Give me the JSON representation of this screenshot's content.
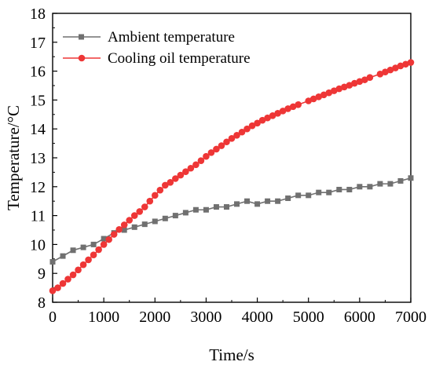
{
  "chart_data": {
    "type": "line",
    "title": "",
    "xlabel": "Time/s",
    "ylabel": "Temperature/°C",
    "xlim": [
      0,
      7000
    ],
    "ylim": [
      8,
      18
    ],
    "xticks": [
      0,
      1000,
      2000,
      3000,
      4000,
      5000,
      6000,
      7000
    ],
    "yticks": [
      8,
      9,
      10,
      11,
      12,
      13,
      14,
      15,
      16,
      17,
      18
    ],
    "grid": false,
    "legend_position": "top-left",
    "series": [
      {
        "name": "Ambient temperature",
        "color": "#707070",
        "marker": "square",
        "x": [
          0,
          200,
          400,
          600,
          800,
          1000,
          1200,
          1400,
          1600,
          1800,
          2000,
          2200,
          2400,
          2600,
          2800,
          3000,
          3200,
          3400,
          3600,
          3800,
          4000,
          4200,
          4400,
          4600,
          4800,
          5000,
          5200,
          5400,
          5600,
          5800,
          6000,
          6200,
          6400,
          6600,
          6800,
          7000
        ],
        "y": [
          9.4,
          9.6,
          9.8,
          9.9,
          10.0,
          10.2,
          10.4,
          10.5,
          10.6,
          10.7,
          10.8,
          10.9,
          11.0,
          11.1,
          11.2,
          11.2,
          11.3,
          11.3,
          11.4,
          11.5,
          11.4,
          11.5,
          11.5,
          11.6,
          11.7,
          11.7,
          11.8,
          11.8,
          11.9,
          11.9,
          12.0,
          12.0,
          12.1,
          12.1,
          12.2,
          12.3
        ]
      },
      {
        "name": "Cooling oil temperature",
        "color": "#ee3636",
        "marker": "circle",
        "x": [
          0,
          100,
          200,
          300,
          400,
          500,
          600,
          700,
          800,
          900,
          1000,
          1100,
          1200,
          1300,
          1400,
          1500,
          1600,
          1700,
          1800,
          1900,
          2000,
          2100,
          2200,
          2300,
          2400,
          2500,
          2600,
          2700,
          2800,
          2900,
          3000,
          3100,
          3200,
          3300,
          3400,
          3500,
          3600,
          3700,
          3800,
          3900,
          4000,
          4100,
          4200,
          4300,
          4400,
          4500,
          4600,
          4700,
          4800,
          5000,
          5100,
          5200,
          5300,
          5400,
          5500,
          5600,
          5700,
          5800,
          5900,
          6000,
          6100,
          6200,
          6400,
          6500,
          6600,
          6700,
          6800,
          6900,
          7000
        ],
        "y": [
          8.4,
          8.5,
          8.65,
          8.8,
          8.95,
          9.12,
          9.3,
          9.47,
          9.64,
          9.82,
          10.0,
          10.17,
          10.35,
          10.52,
          10.68,
          10.84,
          11.0,
          11.14,
          11.3,
          11.5,
          11.7,
          11.88,
          12.05,
          12.15,
          12.28,
          12.4,
          12.52,
          12.64,
          12.76,
          12.9,
          13.05,
          13.18,
          13.3,
          13.42,
          13.55,
          13.67,
          13.78,
          13.89,
          14.0,
          14.11,
          14.2,
          14.3,
          14.38,
          14.46,
          14.54,
          14.62,
          14.7,
          14.77,
          14.84,
          14.97,
          15.04,
          15.11,
          15.18,
          15.25,
          15.32,
          15.39,
          15.45,
          15.51,
          15.58,
          15.64,
          15.7,
          15.78,
          15.9,
          15.97,
          16.04,
          16.11,
          16.18,
          16.24,
          16.3
        ]
      }
    ]
  }
}
